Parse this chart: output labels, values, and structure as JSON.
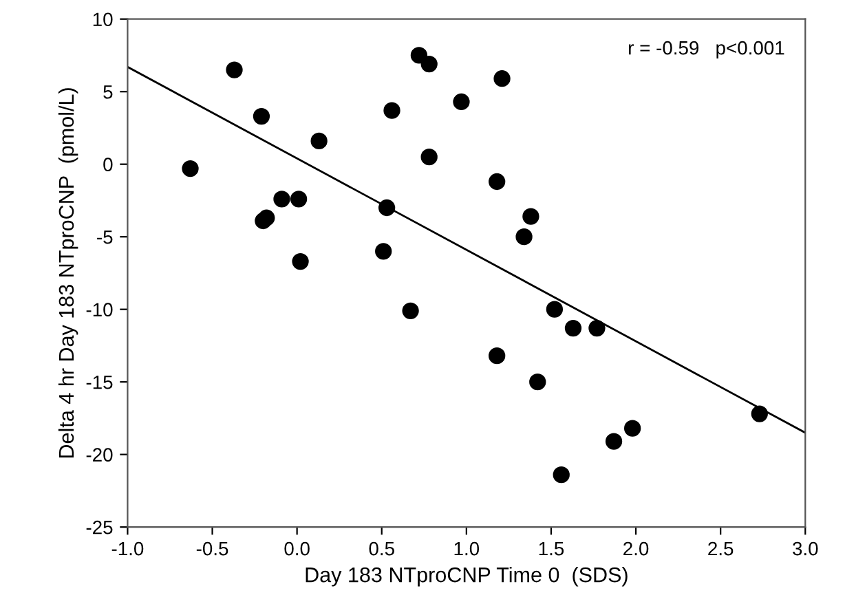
{
  "chart_data": {
    "type": "scatter",
    "xlabel": "Day 183 NTproCNP Time 0  (SDS)",
    "ylabel": "Delta 4 hr Day 183 NTproCNP  (pmol/L)",
    "annotations": [
      "r = -0.59   p<0.001"
    ],
    "xlim": [
      -1.0,
      3.0
    ],
    "xticks": [
      {
        "value": -1.0,
        "label": "-1.0"
      },
      {
        "value": -0.5,
        "label": "-0.5"
      },
      {
        "value": 0.0,
        "label": "0.0"
      },
      {
        "value": 0.5,
        "label": "0.5"
      },
      {
        "value": 1.0,
        "label": "1.0"
      },
      {
        "value": 1.5,
        "label": "1.5"
      },
      {
        "value": 2.0,
        "label": "2.0"
      },
      {
        "value": 2.5,
        "label": "2.5"
      },
      {
        "value": 3.0,
        "label": "3.0"
      }
    ],
    "ylim": [
      -25,
      10
    ],
    "yticks": [
      -25,
      -20,
      -15,
      -10,
      -5,
      0,
      5,
      10
    ],
    "grid": false,
    "series": [
      {
        "marker": "circle",
        "color": "#000000",
        "x": [
          -0.63,
          -0.37,
          -0.21,
          -0.2,
          -0.18,
          -0.09,
          0.01,
          0.02,
          0.13,
          0.51,
          0.53,
          0.56,
          0.67,
          0.72,
          0.78,
          0.78,
          0.97,
          1.18,
          1.18,
          1.21,
          1.34,
          1.38,
          1.42,
          1.52,
          1.56,
          1.63,
          1.77,
          1.87,
          1.98,
          2.73
        ],
        "values": [
          -0.3,
          6.5,
          3.3,
          -3.9,
          -3.7,
          -2.4,
          -2.4,
          -6.7,
          1.6,
          -6.0,
          -3.0,
          3.7,
          -10.1,
          7.5,
          6.9,
          0.5,
          4.3,
          -1.2,
          -13.2,
          5.9,
          -5.0,
          -3.6,
          -15.0,
          -10.0,
          -21.4,
          -11.3,
          -11.3,
          -19.1,
          -18.2,
          -17.2
        ]
      },
      {
        "type": "line",
        "color": "#000000",
        "x": [
          -1.0,
          3.0
        ],
        "values": [
          6.7,
          -18.5
        ]
      }
    ]
  }
}
